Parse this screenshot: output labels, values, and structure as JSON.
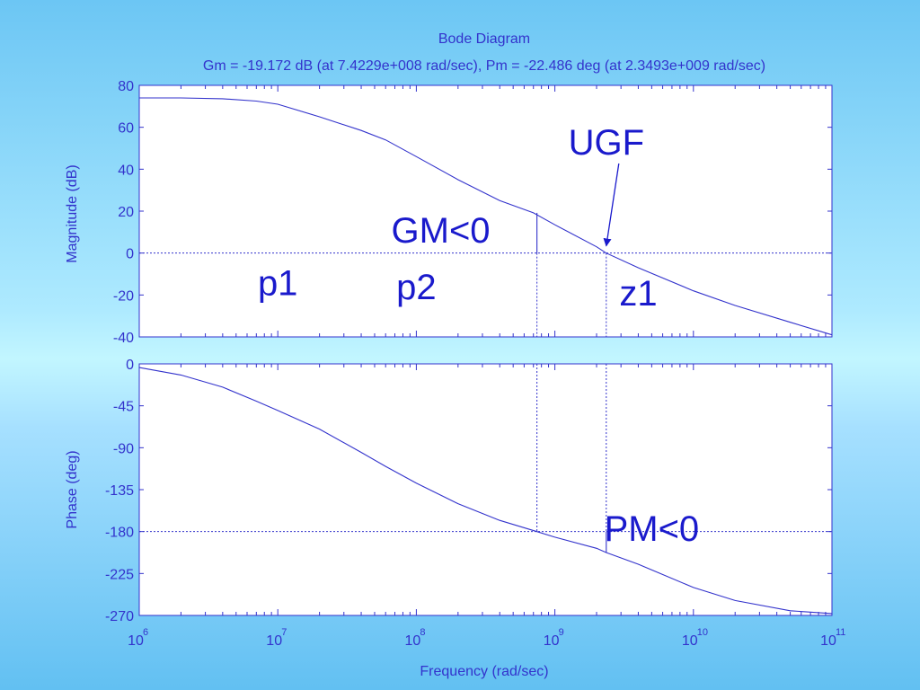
{
  "colors": {
    "axis": "#3333cc",
    "annotation": "#1a1acc",
    "plot_background": "#ffffff"
  },
  "chart_data": {
    "type": "line",
    "title": "Bode Diagram",
    "subtitle": "Gm = -19.172 dB (at 7.4229e+008 rad/sec),  Pm = -22.486 deg (at 2.3493e+009 rad/sec)",
    "xlabel": "Frequency (rad/sec)",
    "xscale": "log",
    "xlim": [
      1000000,
      100000000000
    ],
    "x_ticks": [
      {
        "base": "10",
        "exp": "6"
      },
      {
        "base": "10",
        "exp": "7"
      },
      {
        "base": "10",
        "exp": "8"
      },
      {
        "base": "10",
        "exp": "9"
      },
      {
        "base": "10",
        "exp": "10"
      },
      {
        "base": "10",
        "exp": "11"
      }
    ],
    "gain_crossover_freq": 2349300000,
    "phase_crossover_freq": 742290000,
    "panels": [
      {
        "id": "magnitude",
        "ylabel": "Magnitude (dB)",
        "ylim": [
          -40,
          80
        ],
        "yticks": [
          "80",
          "60",
          "40",
          "20",
          "0",
          "-20",
          "-40"
        ],
        "reference_line": 0,
        "gm_marker": {
          "x": 742290000,
          "y_from": 0,
          "y_to": 19.172
        },
        "series": [
          {
            "x": [
              1000000,
              2000000,
              4000000,
              7000000,
              10000000,
              20000000,
              40000000,
              60000000,
              100000000,
              200000000,
              400000000,
              700000000,
              1000000000,
              2000000000,
              2349300000,
              4000000000,
              10000000000,
              20000000000,
              50000000000,
              100000000000
            ],
            "y": [
              74,
              74,
              73.6,
              72.5,
              71,
              65,
              58.5,
              54,
              46,
              35,
              25,
              19.2,
              13.5,
              3,
              0,
              -7,
              -18,
              -25,
              -33,
              -39
            ]
          }
        ],
        "labels": [
          {
            "text": "UGF",
            "x": 2349300000,
            "y": 47
          },
          {
            "text": "GM<0",
            "x": 150000000,
            "y": 5
          },
          {
            "text": "p1",
            "x": 10000000,
            "y": -20
          },
          {
            "text": "p2",
            "x": 100000000,
            "y": -22
          },
          {
            "text": "z1",
            "x": 4000000000,
            "y": -25
          }
        ]
      },
      {
        "id": "phase",
        "ylabel": "Phase (deg)",
        "ylim": [
          -270,
          0
        ],
        "yticks": [
          "0",
          "-45",
          "-90",
          "-135",
          "-180",
          "-225",
          "-270"
        ],
        "reference_line": -180,
        "pm_marker": {
          "x": 2349300000,
          "y_from": -202.486,
          "y_to": -180
        },
        "series": [
          {
            "x": [
              1000000,
              2000000,
              4000000,
              7000000,
              10000000,
              20000000,
              40000000,
              60000000,
              100000000,
              200000000,
              400000000,
              742290000,
              1000000000,
              2000000000,
              2349300000,
              4000000000,
              10000000000,
              20000000000,
              50000000000,
              100000000000
            ],
            "y": [
              -4,
              -12,
              -25,
              -40,
              -50,
              -70,
              -95,
              -110,
              -128,
              -150,
              -168,
              -180,
              -186,
              -198,
              -202.5,
              -215,
              -240,
              -254,
              -265,
              -268
            ]
          }
        ],
        "labels": [
          {
            "text": "PM<0",
            "x": 5000000000,
            "y": -190
          }
        ]
      }
    ]
  }
}
